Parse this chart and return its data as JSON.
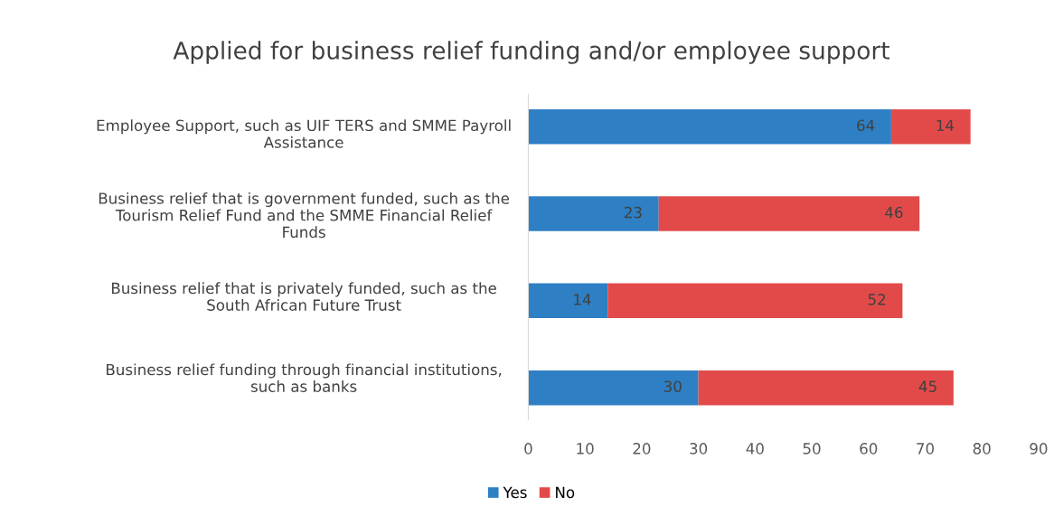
{
  "chart_data": {
    "type": "bar",
    "orientation": "horizontal",
    "stacked": true,
    "title": "Applied for business relief funding and/or employee support",
    "categories": [
      "Employee Support, such as UIF TERS and SMME Payroll Assistance",
      "Business relief that is government funded, such as the Tourism Relief Fund and the SMME Financial Relief Funds",
      "Business relief that is privately funded, such as the South African Future Trust",
      "Business relief funding through financial institutions, such as banks"
    ],
    "series": [
      {
        "name": "Yes",
        "color": "#2e7fc4",
        "values": [
          64,
          23,
          14,
          30
        ]
      },
      {
        "name": "No",
        "color": "#e24a4a",
        "values": [
          14,
          46,
          52,
          45
        ]
      }
    ],
    "xlim": [
      0,
      90
    ],
    "xticks": [
      0,
      10,
      20,
      30,
      40,
      50,
      60,
      70,
      80,
      90
    ],
    "data_labels": true,
    "grid": false,
    "legend": "bottom"
  }
}
